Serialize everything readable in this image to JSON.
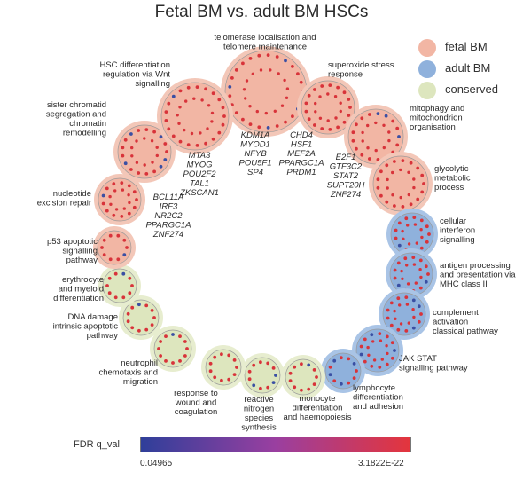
{
  "title": "Fetal BM vs. adult BM HSCs",
  "colors": {
    "fetal": "#f2b6a4",
    "fetal_ring": "#f3c7b8",
    "adult": "#8fb1dc",
    "adult_ring": "#a9c4e6",
    "conserved": "#dde6be",
    "conserved_ring": "#e7edcf",
    "dot_high": "#d8333a",
    "dot_low": "#3a4fa3",
    "colorbar_low": "#2f3f9a",
    "colorbar_mid": "#9a3fa0",
    "colorbar_high": "#e4353c"
  },
  "legend": [
    {
      "label": "fetal BM",
      "group": "fetal"
    },
    {
      "label": "adult BM",
      "group": "adult"
    },
    {
      "label": "conserved",
      "group": "conserved"
    }
  ],
  "nodes": [
    {
      "label": [
        "telomerase localisation and",
        "telomere maintenance"
      ],
      "group": "fetal",
      "size": "xl"
    },
    {
      "label": [
        "superoxide stress",
        "response"
      ],
      "group": "fetal",
      "size": "m"
    },
    {
      "label": [
        "mitophagy and",
        "mitochondrion",
        "organisation"
      ],
      "group": "fetal",
      "size": "m"
    },
    {
      "label": [
        "glycolytic",
        "metabolic",
        "process"
      ],
      "group": "fetal",
      "size": "m"
    },
    {
      "label": [
        "cellular",
        "interferon",
        "signalling"
      ],
      "group": "adult",
      "size": "s"
    },
    {
      "label": [
        "antigen processing",
        "and presentation via",
        "MHC class II"
      ],
      "group": "adult",
      "size": "s"
    },
    {
      "label": [
        "complement",
        "activation",
        "classical pathway"
      ],
      "group": "adult",
      "size": "s"
    },
    {
      "label": [
        "JAK STAT",
        "signalling pathway"
      ],
      "group": "adult",
      "size": "s"
    },
    {
      "label": [
        "lymphocyte",
        "differentiation",
        "and adhesion"
      ],
      "group": "adult",
      "size": "xs"
    },
    {
      "label": [
        "monocyte",
        "differentiation",
        "and haemopoiesis"
      ],
      "group": "conserved",
      "size": "xs"
    },
    {
      "label": [
        "reactive",
        "nitrogen",
        "species",
        "synthesis"
      ],
      "group": "conserved",
      "size": "xs"
    },
    {
      "label": [
        "response to",
        "wound and",
        "coagulation"
      ],
      "group": "conserved",
      "size": "xs"
    },
    {
      "label": [
        "neutrophil",
        "chemotaxis and",
        "migration"
      ],
      "group": "conserved",
      "size": "xs"
    },
    {
      "label": [
        "DNA damage",
        "intrinsic apoptotic",
        "pathway"
      ],
      "group": "conserved",
      "size": "xxs"
    },
    {
      "label": [
        "erythrocyte",
        "and myeloid",
        "differentiation"
      ],
      "group": "conserved",
      "size": "xxs"
    },
    {
      "label": [
        "p53 apoptotic",
        "signalling",
        "pathway"
      ],
      "group": "fetal",
      "size": "xxs"
    },
    {
      "label": [
        "nucleotide",
        "excision repair"
      ],
      "group": "fetal",
      "size": "s"
    },
    {
      "label": [
        "sister chromatid",
        "segregation and",
        "chromatin",
        "remodelling"
      ],
      "group": "fetal",
      "size": "m"
    },
    {
      "label": [
        "HSC differentiation",
        "regulation via Wnt",
        "signalling"
      ],
      "group": "fetal",
      "size": "l"
    }
  ],
  "tf_groups": [
    {
      "genes": [
        "KDM1A",
        "MYOD1",
        "NFYB",
        "POU5F1",
        "SP4"
      ]
    },
    {
      "genes": [
        "CHD4",
        "HSF1",
        "MEF2A",
        "PPARGC1A",
        "PRDM1"
      ]
    },
    {
      "genes": [
        "E2F1",
        "GTF3C2",
        "STAT2",
        "SUPT20H",
        "ZNF274"
      ]
    },
    {
      "genes": [
        "MTA3",
        "MYOG",
        "POU2F2",
        "TAL1",
        "ZKSCAN1"
      ]
    },
    {
      "genes": [
        "BCL11A",
        "IRF3",
        "NR2C2",
        "PPARGC1A",
        "ZNF274"
      ]
    }
  ],
  "colorbar": {
    "label": "FDR q_val",
    "min_label": "0.04965",
    "max_label": "3.1822E-22"
  }
}
